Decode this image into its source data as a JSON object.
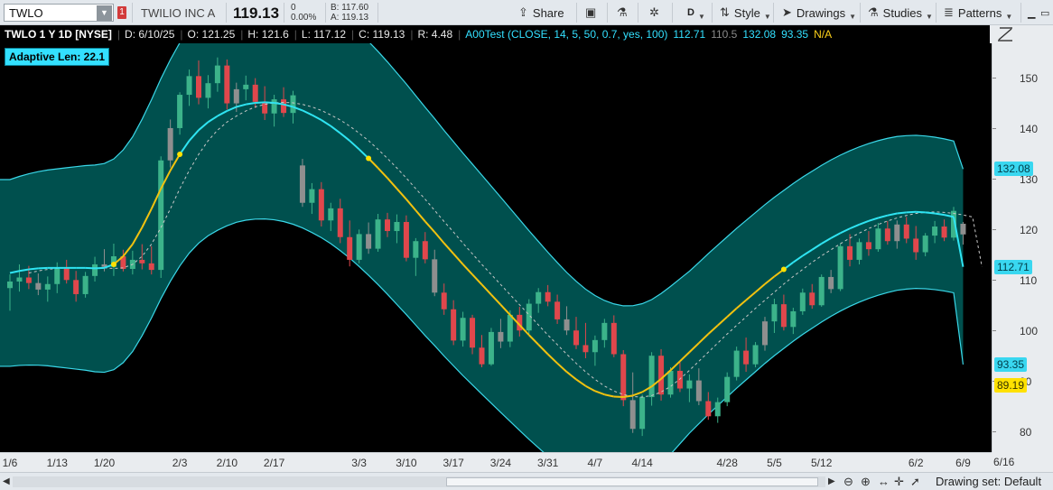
{
  "toolbar": {
    "symbol": "TWLO",
    "alert_badge": "1",
    "company": "TWILIO INC A",
    "last": "119.13",
    "net_change": "0",
    "pct_change": "0.00%",
    "bid": "B: 117.60",
    "ask": "A: 119.13",
    "share": "Share",
    "period": "D",
    "style": "Style",
    "drawings": "Drawings",
    "studies": "Studies",
    "patterns": "Patterns"
  },
  "study_header": {
    "title": "TWLO 1 Y 1D [NYSE]",
    "date": "D: 6/10/25",
    "open": "O: 121.25",
    "high": "H: 121.6",
    "low": "L: 117.12",
    "close": "C: 119.13",
    "range": "R: 4.48",
    "study": "A00Test (CLOSE, 14, 5, 50, 0.7, yes, 100)",
    "v1": "112.71",
    "v2": "110.5",
    "v3": "132.08",
    "v4": "93.35",
    "v5": "N/A",
    "adaptive_label": "Adaptive Len: 22.1"
  },
  "colors": {
    "band_fill": "#00504e",
    "band_edge": "#3ad7e8",
    "adaptive_line": "#2fe4f2",
    "adaptive_flat": "#f2c20f",
    "lag_line": "#c8c8c8",
    "up": "#3cb38a",
    "down": "#e0474c",
    "neutral": "#8f8f8f"
  },
  "chart_data": {
    "type": "candlestick",
    "x_ticks": [
      "1/6",
      "1/13",
      "1/20",
      "2/3",
      "2/10",
      "2/17",
      "3/3",
      "3/10",
      "3/17",
      "3/24",
      "3/31",
      "4/7",
      "4/14",
      "4/28",
      "5/5",
      "5/12",
      "6/2",
      "6/9",
      "6/16"
    ],
    "x_tick_index": [
      0,
      5,
      10,
      18,
      23,
      28,
      37,
      42,
      47,
      52,
      57,
      62,
      67,
      76,
      81,
      86,
      96,
      101,
      106
    ],
    "last_index": 101,
    "ylim": [
      76,
      157
    ],
    "yticks": [
      80,
      90,
      100,
      110,
      120,
      130,
      140,
      150
    ],
    "candles": [
      [
        108.5,
        111.2,
        104,
        109.8
      ],
      [
        109.8,
        113.2,
        107.8,
        110.6
      ],
      [
        110.6,
        112.9,
        108.3,
        109.5
      ],
      [
        109.5,
        111.4,
        107.1,
        108.2
      ],
      [
        108.2,
        110.8,
        105.8,
        109.3
      ],
      [
        109.3,
        113.6,
        107.5,
        112.5
      ],
      [
        112.5,
        114.1,
        109.4,
        110.1
      ],
      [
        110.1,
        111.9,
        105.8,
        107.3
      ],
      [
        107.3,
        111.7,
        106.6,
        110.9
      ],
      [
        110.9,
        114.7,
        109.8,
        113.2
      ],
      [
        113.2,
        116.2,
        111.8,
        112.7
      ],
      [
        112.7,
        117.3,
        110.9,
        114.8
      ],
      [
        114.8,
        116.1,
        111.8,
        112.3
      ],
      [
        112.3,
        115.9,
        111.2,
        114.1
      ],
      [
        114.1,
        117.2,
        112.2,
        113.4
      ],
      [
        113.4,
        116.8,
        111.2,
        112.1
      ],
      [
        112.1,
        134.6,
        110.5,
        133.8
      ],
      [
        133.8,
        141.9,
        132.4,
        140.2
      ],
      [
        140.2,
        147.3,
        138.9,
        146.8
      ],
      [
        146.8,
        151.8,
        144.6,
        150.5
      ],
      [
        150.5,
        153.6,
        144.9,
        146.2
      ],
      [
        146.2,
        150.7,
        144.1,
        149.1
      ],
      [
        149.1,
        154.2,
        147.4,
        152.6
      ],
      [
        152.6,
        153.8,
        143.9,
        145.1
      ],
      [
        145.1,
        149.2,
        143.4,
        147.9
      ],
      [
        147.9,
        150.6,
        145.7,
        148.8
      ],
      [
        148.8,
        150.1,
        144.2,
        145.4
      ],
      [
        145.4,
        148.5,
        141.8,
        143.1
      ],
      [
        143.1,
        146.8,
        140.5,
        145.9
      ],
      [
        145.9,
        148.3,
        142.4,
        143.2
      ],
      [
        143.2,
        147.6,
        141.1,
        146.7
      ],
      [
        132.8,
        134.1,
        124.6,
        125.4
      ],
      [
        125.4,
        129.3,
        123.2,
        128.1
      ],
      [
        128.1,
        129.5,
        120.7,
        121.9
      ],
      [
        121.9,
        125.4,
        119.8,
        124.3
      ],
      [
        124.3,
        126.2,
        117.4,
        118.6
      ],
      [
        118.6,
        121.9,
        112.8,
        114.1
      ],
      [
        114.1,
        120.1,
        113.4,
        119.2
      ],
      [
        119.2,
        121.5,
        115.3,
        116.3
      ],
      [
        116.3,
        123.2,
        115.7,
        122.1
      ],
      [
        122.1,
        123.4,
        118.6,
        119.8
      ],
      [
        119.8,
        123.1,
        117.4,
        121.6
      ],
      [
        121.6,
        122.9,
        113.8,
        114.5
      ],
      [
        114.5,
        118.4,
        110.9,
        117.8
      ],
      [
        117.8,
        119.6,
        113.4,
        114.2
      ],
      [
        114.2,
        116.1,
        106.9,
        107.6
      ],
      [
        107.6,
        109.4,
        103.2,
        104.3
      ],
      [
        104.3,
        106.1,
        97.2,
        98.1
      ],
      [
        98.1,
        103.8,
        96.9,
        102.6
      ],
      [
        102.6,
        103.2,
        95.4,
        96.7
      ],
      [
        96.7,
        99.2,
        92.8,
        93.4
      ],
      [
        93.4,
        100.6,
        93.1,
        99.8
      ],
      [
        99.8,
        102.4,
        96.6,
        97.9
      ],
      [
        97.9,
        104.1,
        96.8,
        103.2
      ],
      [
        103.2,
        104.8,
        98.9,
        100.1
      ],
      [
        100.1,
        106.3,
        99.4,
        105.4
      ],
      [
        105.4,
        108.5,
        103.6,
        107.7
      ],
      [
        107.7,
        109.1,
        104.9,
        105.8
      ],
      [
        105.8,
        107.2,
        101.4,
        102.3
      ],
      [
        102.3,
        104.9,
        99.2,
        100.1
      ],
      [
        100.1,
        102.8,
        96.4,
        97.2
      ],
      [
        97.2,
        101.6,
        94.6,
        95.8
      ],
      [
        95.8,
        99.1,
        93.1,
        98.2
      ],
      [
        98.2,
        102.4,
        96.7,
        101.6
      ],
      [
        101.6,
        103.1,
        94.8,
        95.4
      ],
      [
        95.4,
        96.2,
        85.1,
        86.3
      ],
      [
        86.3,
        91.8,
        79.8,
        80.6
      ],
      [
        80.6,
        87.4,
        79.2,
        86.9
      ],
      [
        86.9,
        95.8,
        85.2,
        95.1
      ],
      [
        95.1,
        96.4,
        86.2,
        87.4
      ],
      [
        87.4,
        92.8,
        86.8,
        92.1
      ],
      [
        92.1,
        93.8,
        87.9,
        88.6
      ],
      [
        88.6,
        91.4,
        85.9,
        90.2
      ],
      [
        90.2,
        92.6,
        85.3,
        86.1
      ],
      [
        86.1,
        87.9,
        82.4,
        83.1
      ],
      [
        83.1,
        86.8,
        81.8,
        85.9
      ],
      [
        85.9,
        91.8,
        85.1,
        90.9
      ],
      [
        90.9,
        96.9,
        90.2,
        96.1
      ],
      [
        96.1,
        98.7,
        91.9,
        93.4
      ],
      [
        93.4,
        97.8,
        92.8,
        97.2
      ],
      [
        97.2,
        102.8,
        96.1,
        101.9
      ],
      [
        101.9,
        106.4,
        99.6,
        105.3
      ],
      [
        105.3,
        107.2,
        100.1,
        100.8
      ],
      [
        100.8,
        104.6,
        99.4,
        103.9
      ],
      [
        103.9,
        108.4,
        103.2,
        107.6
      ],
      [
        107.6,
        109.3,
        104.4,
        105.1
      ],
      [
        105.1,
        111.2,
        104.8,
        110.7
      ],
      [
        110.7,
        112.1,
        107.5,
        108.3
      ],
      [
        108.3,
        117.4,
        107.9,
        116.8
      ],
      [
        116.8,
        119.2,
        112.8,
        114.1
      ],
      [
        114.1,
        118.3,
        113.2,
        117.6
      ],
      [
        117.6,
        119.8,
        114.9,
        116.2
      ],
      [
        116.2,
        121.4,
        115.7,
        120.3
      ],
      [
        120.3,
        121.8,
        117.1,
        117.8
      ],
      [
        117.8,
        121.9,
        116.3,
        121.1
      ],
      [
        121.1,
        122.6,
        117.4,
        118.3
      ],
      [
        118.3,
        120.8,
        114.1,
        115.6
      ],
      [
        115.6,
        119.4,
        114.8,
        118.9
      ],
      [
        118.9,
        121.8,
        117.4,
        120.7
      ],
      [
        120.7,
        122.1,
        117.8,
        118.5
      ],
      [
        118.5,
        124.6,
        117.9,
        123.8
      ],
      [
        121.25,
        121.6,
        117.12,
        119.13
      ]
    ],
    "adaptive_ma": [
      111.5,
      111.9,
      112.2,
      112.4,
      112.5,
      112.5,
      112.5,
      112.5,
      112.5,
      112.4,
      112.5,
      113.2,
      114.8,
      117.2,
      120.5,
      124.2,
      128.2,
      131.8,
      135.0,
      137.7,
      139.8,
      141.4,
      142.6,
      143.6,
      144.4,
      144.9,
      145.2,
      145.3,
      145.2,
      144.9,
      144.4,
      143.7,
      142.8,
      141.8,
      140.6,
      139.2,
      137.7,
      136.0,
      134.2,
      132.3,
      130.3,
      128.2,
      126.1,
      123.9,
      121.7,
      119.6,
      117.4,
      115.3,
      113.2,
      111.2,
      109.2,
      107.2,
      105.2,
      103.2,
      101.2,
      99.2,
      97.3,
      95.4,
      93.6,
      91.9,
      90.4,
      89.1,
      88.1,
      87.4,
      87.0,
      86.9,
      87.2,
      87.9,
      89.0,
      90.5,
      92.2,
      94.0,
      95.8,
      97.6,
      99.4,
      101.1,
      102.8,
      104.5,
      106.1,
      107.7,
      109.3,
      110.8,
      112.2,
      113.6,
      114.9,
      116.1,
      117.3,
      118.4,
      119.4,
      120.3,
      121.1,
      121.8,
      122.4,
      122.9,
      123.3,
      123.5,
      123.6,
      123.5,
      123.3,
      123.0,
      122.6,
      112.71
    ],
    "upper_band": [
      132.08
    ],
    "lower_band": [
      93.35
    ],
    "flat_signal_label": "89.19"
  },
  "y_axis": {
    "badges": [
      {
        "label": "132.08",
        "value": 132.08,
        "bg": "#39d7f0",
        "fg": "#003c48"
      },
      {
        "label": "112.71",
        "value": 112.71,
        "bg": "#39d7f0",
        "fg": "#003c48"
      },
      {
        "label": "93.35",
        "value": 93.35,
        "bg": "#39d7f0",
        "fg": "#003c48"
      },
      {
        "label": "89.19",
        "value": 89.19,
        "bg": "#ffe100",
        "fg": "#333300"
      }
    ]
  },
  "bottombar": {
    "drawing_set": "Drawing set: Default"
  }
}
